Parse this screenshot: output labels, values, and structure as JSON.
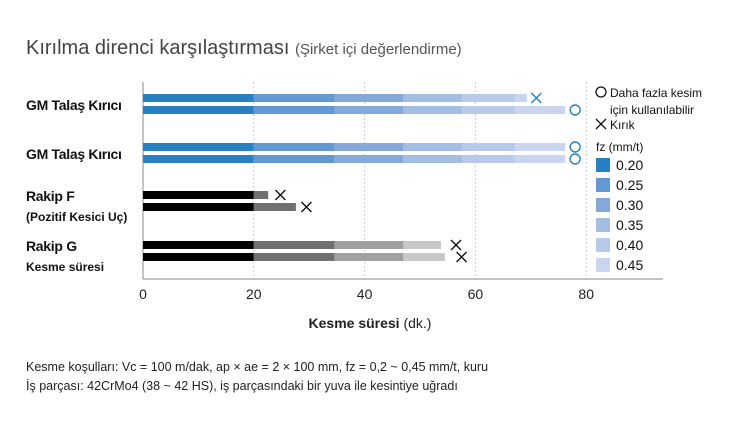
{
  "chart_data": {
    "type": "bar",
    "title": "Kırılma direnci karşılaştırması",
    "subtitle": "(Şirket içi değerlendirme)",
    "xlabel": "Kesme süresi",
    "xlabel_unit": "(dk.)",
    "xlim": [
      0,
      95
    ],
    "xticks": [
      "0",
      "20",
      "40",
      "60",
      "80"
    ],
    "xtick_values": [
      0,
      20,
      40,
      60,
      80
    ],
    "grid": "vertical dotted",
    "groups": [
      {
        "label": "GM Talaş Kırıcı",
        "sublabel": "",
        "palette": "blue",
        "bars": [
          {
            "segments_end": [
              20,
              34.6,
              47,
              57.6,
              67.2,
              69.3
            ],
            "marker": "x",
            "marker_at": 71
          },
          {
            "segments_end": [
              20,
              34.6,
              47,
              57.6,
              67.2,
              76.2
            ],
            "marker": "o",
            "marker_at": 78
          }
        ]
      },
      {
        "label": "GM Talaş Kırıcı",
        "sublabel": "",
        "palette": "blue",
        "bars": [
          {
            "segments_end": [
              20,
              34.6,
              47,
              57.6,
              67.2,
              76.2
            ],
            "marker": "o",
            "marker_at": 78
          },
          {
            "segments_end": [
              20,
              34.6,
              47,
              57.6,
              67.2,
              76.2
            ],
            "marker": "o",
            "marker_at": 78
          }
        ]
      },
      {
        "label": "Rakip F",
        "sublabel": "(Pozitif Kesici Uç)",
        "palette": "gray",
        "bars": [
          {
            "segments_end": [
              20,
              22.6
            ],
            "marker": "x",
            "marker_at": 24.8
          },
          {
            "segments_end": [
              20,
              27.6
            ],
            "marker": "x",
            "marker_at": 29.5
          }
        ]
      },
      {
        "label": "Rakip G",
        "sublabel": "Kesme süresi",
        "palette": "gray",
        "bars": [
          {
            "segments_end": [
              20,
              34.6,
              47,
              53.8
            ],
            "marker": "x",
            "marker_at": 56.5
          },
          {
            "segments_end": [
              20,
              34.6,
              47,
              54.5
            ],
            "marker": "x",
            "marker_at": 57.5
          }
        ]
      }
    ],
    "legend": {
      "placement": "right",
      "circle_label_1": "Daha fazla kesim",
      "circle_label_2": "için kullanılabilir",
      "cross_label": "Kırık",
      "fz_title": "fz (mm/t)",
      "fz_values": [
        "0.20",
        "0.25",
        "0.30",
        "0.35",
        "0.40",
        "0.45"
      ]
    },
    "colors": {
      "blue": [
        "#2680c2",
        "#6399d0",
        "#85a9d8",
        "#a3bde3",
        "#b8caea",
        "#cad6ef"
      ],
      "gray": [
        "#000000",
        "#707070",
        "#a0a0a0",
        "#c8c8c8"
      ],
      "marker_blue": "#2680c2",
      "marker_dark": "#111111"
    }
  },
  "notes": {
    "line1": "Kesme koşulları: Vc = 100 m/dak, ap × ae = 2 × 100 mm, fz = 0,2 ~ 0,45 mm/t, kuru",
    "line2": "İş parçası: 42CrMo4 (38 ~ 42 HS), iş parçasındaki bir yuva ile kesintiye uğradı"
  }
}
